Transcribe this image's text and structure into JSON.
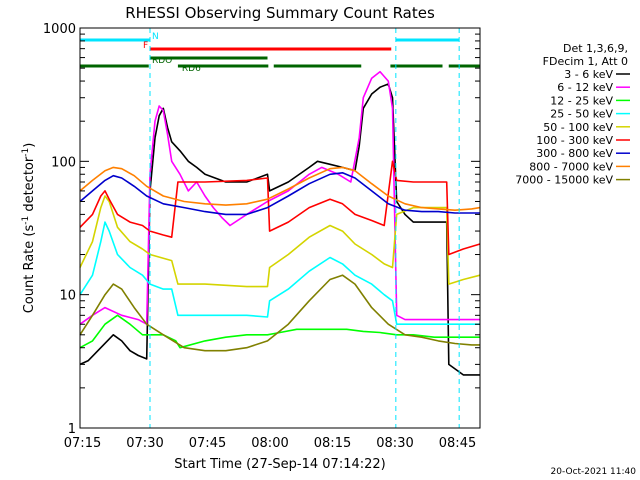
{
  "chart_data": {
    "type": "line",
    "title": "RHESSI Observing Summary Count Rates",
    "xlabel": "Start Time (27-Sep-14 07:14:22)",
    "ylabel_main": "Count Rate (s",
    "ylabel_sup1": "-1",
    "ylabel_mid": " detector",
    "ylabel_sup2": "-1",
    "ylabel_end": ")",
    "yscale": "log",
    "ylim": [
      1,
      1000
    ],
    "xlim_minutes": [
      0,
      96
    ],
    "xticks": [
      {
        "label": "07:15",
        "t": 0.6
      },
      {
        "label": "07:30",
        "t": 15.6
      },
      {
        "label": "07:45",
        "t": 30.6
      },
      {
        "label": "08:00",
        "t": 45.6
      },
      {
        "label": "08:15",
        "t": 60.6
      },
      {
        "label": "08:30",
        "t": 75.6
      },
      {
        "label": "08:45",
        "t": 90.6
      }
    ],
    "yticks": [
      {
        "label": "1",
        "v": 1
      },
      {
        "label": "10",
        "v": 10
      },
      {
        "label": "100",
        "v": 100
      },
      {
        "label": "1000",
        "v": 1000
      }
    ],
    "legend_header": [
      "Det 1,3,6,9,",
      "FDecim 1, Att 0"
    ],
    "footer_date": "20-Oct-2021 11:40",
    "annotation_bars": [
      {
        "label": "N",
        "color": "#00e5ff",
        "segments": [
          [
            0,
            16.8
          ],
          [
            75.8,
            91
          ]
        ]
      },
      {
        "label": "F",
        "color": "#ff0000",
        "segments": [
          [
            16.8,
            74.7
          ]
        ]
      },
      {
        "label": "RDO",
        "color": "#006400",
        "segments": [
          [
            16.8,
            45
          ]
        ]
      },
      {
        "label": "RD6",
        "color": "#006400",
        "segments": [
          [
            0,
            16.5
          ],
          [
            23.5,
            45.2
          ],
          [
            46.5,
            67.5
          ],
          [
            74.5,
            87
          ],
          [
            88.5,
            96
          ]
        ]
      }
    ],
    "series": [
      {
        "name": "3 - 6 keV",
        "color": "#000000",
        "points": [
          [
            0,
            3
          ],
          [
            2,
            3.2
          ],
          [
            5,
            4
          ],
          [
            8,
            5
          ],
          [
            10,
            4.5
          ],
          [
            12,
            3.8
          ],
          [
            14,
            3.5
          ],
          [
            16,
            3.3
          ],
          [
            16.8,
            60
          ],
          [
            18,
            150
          ],
          [
            19,
            220
          ],
          [
            20,
            250
          ],
          [
            21,
            180
          ],
          [
            22,
            140
          ],
          [
            24,
            120
          ],
          [
            26,
            100
          ],
          [
            28,
            90
          ],
          [
            30,
            80
          ],
          [
            35,
            70
          ],
          [
            40,
            70
          ],
          [
            45,
            80
          ],
          [
            45.5,
            60
          ],
          [
            50,
            70
          ],
          [
            55,
            90
          ],
          [
            57,
            100
          ],
          [
            60,
            95
          ],
          [
            63,
            90
          ],
          [
            66,
            85
          ],
          [
            67,
            130
          ],
          [
            68,
            250
          ],
          [
            70,
            320
          ],
          [
            72,
            360
          ],
          [
            74,
            380
          ],
          [
            75,
            300
          ],
          [
            76,
            50
          ],
          [
            78,
            40
          ],
          [
            80,
            35
          ],
          [
            85,
            35
          ],
          [
            88,
            35
          ],
          [
            88.5,
            3
          ],
          [
            92,
            2.5
          ],
          [
            96,
            2.5
          ]
        ]
      },
      {
        "name": "6 - 12 keV",
        "color": "#ff00ff",
        "points": [
          [
            0,
            6
          ],
          [
            3,
            7
          ],
          [
            6,
            8
          ],
          [
            10,
            7
          ],
          [
            14,
            6.5
          ],
          [
            16,
            6
          ],
          [
            16.8,
            80
          ],
          [
            18,
            200
          ],
          [
            19,
            260
          ],
          [
            20,
            240
          ],
          [
            21,
            160
          ],
          [
            22,
            100
          ],
          [
            24,
            80
          ],
          [
            26,
            60
          ],
          [
            28,
            70
          ],
          [
            30,
            55
          ],
          [
            32,
            45
          ],
          [
            34,
            38
          ],
          [
            36,
            33
          ],
          [
            40,
            40
          ],
          [
            45,
            50
          ],
          [
            50,
            60
          ],
          [
            55,
            80
          ],
          [
            58,
            90
          ],
          [
            62,
            80
          ],
          [
            65,
            70
          ],
          [
            67,
            150
          ],
          [
            68,
            300
          ],
          [
            70,
            420
          ],
          [
            72,
            470
          ],
          [
            74,
            400
          ],
          [
            75,
            250
          ],
          [
            76,
            7
          ],
          [
            78,
            6.5
          ],
          [
            85,
            6.5
          ],
          [
            88,
            6.5
          ],
          [
            92,
            6.5
          ],
          [
            96,
            6.5
          ]
        ]
      },
      {
        "name": "12 - 25 keV",
        "color": "#00ff00",
        "points": [
          [
            0,
            4
          ],
          [
            3,
            4.5
          ],
          [
            6,
            6
          ],
          [
            9,
            7
          ],
          [
            12,
            6
          ],
          [
            15,
            5
          ],
          [
            16.8,
            5
          ],
          [
            20,
            5
          ],
          [
            23,
            4.5
          ],
          [
            24,
            4
          ],
          [
            30,
            4.5
          ],
          [
            35,
            4.8
          ],
          [
            40,
            5
          ],
          [
            45,
            5
          ],
          [
            48,
            5.2
          ],
          [
            52,
            5.5
          ],
          [
            56,
            5.5
          ],
          [
            60,
            5.5
          ],
          [
            64,
            5.5
          ],
          [
            68,
            5.3
          ],
          [
            72,
            5.2
          ],
          [
            76,
            5
          ],
          [
            80,
            5
          ],
          [
            85,
            4.8
          ],
          [
            90,
            4.8
          ],
          [
            96,
            4.8
          ]
        ]
      },
      {
        "name": "25 - 50 keV",
        "color": "#00ffff",
        "points": [
          [
            0,
            10
          ],
          [
            3,
            14
          ],
          [
            5,
            25
          ],
          [
            6,
            35
          ],
          [
            7,
            30
          ],
          [
            9,
            20
          ],
          [
            12,
            16
          ],
          [
            15,
            14
          ],
          [
            16.8,
            12
          ],
          [
            20,
            11
          ],
          [
            22,
            11
          ],
          [
            23.5,
            7
          ],
          [
            30,
            7
          ],
          [
            40,
            7
          ],
          [
            45,
            6.8
          ],
          [
            45.5,
            9
          ],
          [
            50,
            11
          ],
          [
            55,
            15
          ],
          [
            60,
            19
          ],
          [
            63,
            17
          ],
          [
            66,
            14
          ],
          [
            70,
            12
          ],
          [
            73,
            10
          ],
          [
            75,
            9
          ],
          [
            76,
            6
          ],
          [
            80,
            6
          ],
          [
            88,
            6
          ],
          [
            96,
            6
          ]
        ]
      },
      {
        "name": "50 - 100 keV",
        "color": "#d4d400",
        "points": [
          [
            0,
            16
          ],
          [
            3,
            25
          ],
          [
            5,
            45
          ],
          [
            6,
            55
          ],
          [
            7,
            50
          ],
          [
            9,
            32
          ],
          [
            12,
            25
          ],
          [
            15,
            22
          ],
          [
            16.8,
            20
          ],
          [
            22,
            18
          ],
          [
            23.5,
            12
          ],
          [
            30,
            12
          ],
          [
            40,
            11.5
          ],
          [
            45,
            11.5
          ],
          [
            45.5,
            16
          ],
          [
            50,
            20
          ],
          [
            55,
            27
          ],
          [
            60,
            33
          ],
          [
            63,
            30
          ],
          [
            66,
            24
          ],
          [
            70,
            20
          ],
          [
            73,
            17
          ],
          [
            75,
            16
          ],
          [
            76,
            40
          ],
          [
            80,
            45
          ],
          [
            85,
            45
          ],
          [
            88,
            45
          ],
          [
            88.5,
            12
          ],
          [
            92,
            13
          ],
          [
            96,
            14
          ]
        ]
      },
      {
        "name": "100 - 300 keV",
        "color": "#ff0000",
        "points": [
          [
            0,
            32
          ],
          [
            3,
            40
          ],
          [
            5,
            55
          ],
          [
            6,
            60
          ],
          [
            7,
            52
          ],
          [
            9,
            40
          ],
          [
            12,
            35
          ],
          [
            15,
            33
          ],
          [
            16.8,
            30
          ],
          [
            20,
            28
          ],
          [
            22,
            27
          ],
          [
            23.5,
            70
          ],
          [
            30,
            70
          ],
          [
            40,
            72
          ],
          [
            45,
            75
          ],
          [
            45.5,
            30
          ],
          [
            50,
            35
          ],
          [
            55,
            45
          ],
          [
            60,
            52
          ],
          [
            63,
            48
          ],
          [
            66,
            40
          ],
          [
            70,
            36
          ],
          [
            73,
            33
          ],
          [
            75,
            100
          ],
          [
            76,
            72
          ],
          [
            80,
            70
          ],
          [
            85,
            70
          ],
          [
            88,
            70
          ],
          [
            88.5,
            20
          ],
          [
            92,
            22
          ],
          [
            96,
            24
          ]
        ]
      },
      {
        "name": "300 - 800 keV",
        "color": "#0000cc",
        "points": [
          [
            0,
            50
          ],
          [
            3,
            60
          ],
          [
            6,
            72
          ],
          [
            8,
            78
          ],
          [
            10,
            75
          ],
          [
            13,
            65
          ],
          [
            16,
            55
          ],
          [
            20,
            48
          ],
          [
            25,
            45
          ],
          [
            30,
            42
          ],
          [
            35,
            40
          ],
          [
            40,
            40
          ],
          [
            45,
            45
          ],
          [
            50,
            55
          ],
          [
            55,
            68
          ],
          [
            60,
            80
          ],
          [
            63,
            82
          ],
          [
            66,
            75
          ],
          [
            70,
            60
          ],
          [
            74,
            48
          ],
          [
            78,
            43
          ],
          [
            82,
            42
          ],
          [
            86,
            42
          ],
          [
            90,
            41
          ],
          [
            94,
            41
          ],
          [
            96,
            41
          ]
        ]
      },
      {
        "name": "800 - 7000 keV",
        "color": "#ff8000",
        "points": [
          [
            0,
            60
          ],
          [
            3,
            72
          ],
          [
            6,
            85
          ],
          [
            8,
            90
          ],
          [
            10,
            88
          ],
          [
            13,
            78
          ],
          [
            16,
            65
          ],
          [
            20,
            55
          ],
          [
            25,
            50
          ],
          [
            30,
            48
          ],
          [
            35,
            47
          ],
          [
            40,
            48
          ],
          [
            45,
            52
          ],
          [
            50,
            62
          ],
          [
            55,
            75
          ],
          [
            60,
            88
          ],
          [
            63,
            90
          ],
          [
            66,
            85
          ],
          [
            70,
            68
          ],
          [
            74,
            55
          ],
          [
            78,
            48
          ],
          [
            82,
            45
          ],
          [
            86,
            44
          ],
          [
            90,
            43
          ],
          [
            94,
            44
          ],
          [
            96,
            45
          ]
        ]
      },
      {
        "name": "7000 - 15000 keV",
        "color": "#808000",
        "points": [
          [
            0,
            5
          ],
          [
            3,
            7
          ],
          [
            6,
            10
          ],
          [
            8,
            12
          ],
          [
            10,
            11
          ],
          [
            13,
            8
          ],
          [
            16,
            6
          ],
          [
            20,
            5
          ],
          [
            25,
            4
          ],
          [
            30,
            3.8
          ],
          [
            35,
            3.8
          ],
          [
            40,
            4
          ],
          [
            45,
            4.5
          ],
          [
            50,
            6
          ],
          [
            55,
            9
          ],
          [
            60,
            13
          ],
          [
            63,
            14
          ],
          [
            66,
            12
          ],
          [
            70,
            8
          ],
          [
            74,
            6
          ],
          [
            78,
            5
          ],
          [
            82,
            4.8
          ],
          [
            86,
            4.5
          ],
          [
            90,
            4.3
          ],
          [
            94,
            4.2
          ],
          [
            96,
            4.2
          ]
        ]
      }
    ]
  }
}
